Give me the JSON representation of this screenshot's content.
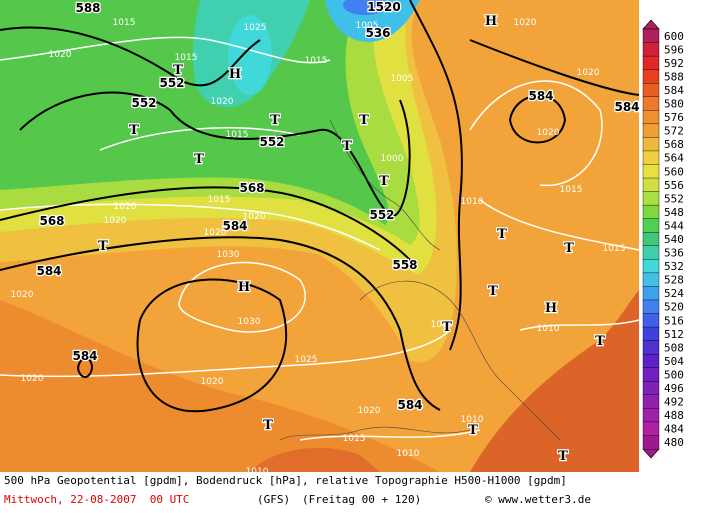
{
  "map": {
    "labels": [
      "588",
      "552",
      "552",
      "552",
      "536",
      "568",
      "568",
      "584",
      "584",
      "584",
      "584",
      "552",
      "558",
      "584",
      "584",
      "1520",
      "1015",
      "1020",
      "1025",
      "1020",
      "1015",
      "1015",
      "1005",
      "1015",
      "1005",
      "1020",
      "1020",
      "1020",
      "1015",
      "1020",
      "1015",
      "1020",
      "1020",
      "1020",
      "1030",
      "1020",
      "1030",
      "1025",
      "1020",
      "1020",
      "1010",
      "1010",
      "1015",
      "1020",
      "1015",
      "1010",
      "1010",
      "1010",
      "1000",
      "1020",
      "H",
      "H",
      "T",
      "T",
      "T",
      "T",
      "T",
      "T",
      "T",
      "T",
      "H",
      "T",
      "T",
      "T",
      "H",
      "T",
      "T",
      "T",
      "T",
      "T"
    ]
  },
  "legend": {
    "labels": [
      "600",
      "596",
      "592",
      "588",
      "584",
      "580",
      "576",
      "572",
      "568",
      "564",
      "560",
      "556",
      "552",
      "548",
      "544",
      "540",
      "536",
      "532",
      "528",
      "524",
      "520",
      "516",
      "512",
      "508",
      "504",
      "500",
      "496",
      "492",
      "488",
      "484",
      "480"
    ],
    "colors": [
      "#b0205a",
      "#d0203a",
      "#e02828",
      "#e84020",
      "#e86020",
      "#f07828",
      "#f09030",
      "#f0a030",
      "#f0b840",
      "#f0d040",
      "#e8e040",
      "#d0e040",
      "#a8e040",
      "#80d840",
      "#50d050",
      "#40c878",
      "#40d0a8",
      "#40d8d8",
      "#40c0e8",
      "#40a0f0",
      "#4080f0",
      "#4060e8",
      "#4040e0",
      "#5030d0",
      "#6020c8",
      "#7020c0",
      "#8020b8",
      "#9020b0",
      "#a020a8",
      "#b020a0",
      "#a01890"
    ]
  },
  "footer": {
    "line1": "500 hPa Geopotential [gpdm], Bodendruck [hPa], relative Topographie H500-H1000 [gpdm]",
    "date": "Mittwoch, 22-08-2007  00 UTC",
    "model": "(GFS)",
    "run": "(Freitag 00 + 120)",
    "credit": "© www.wetter3.de"
  }
}
